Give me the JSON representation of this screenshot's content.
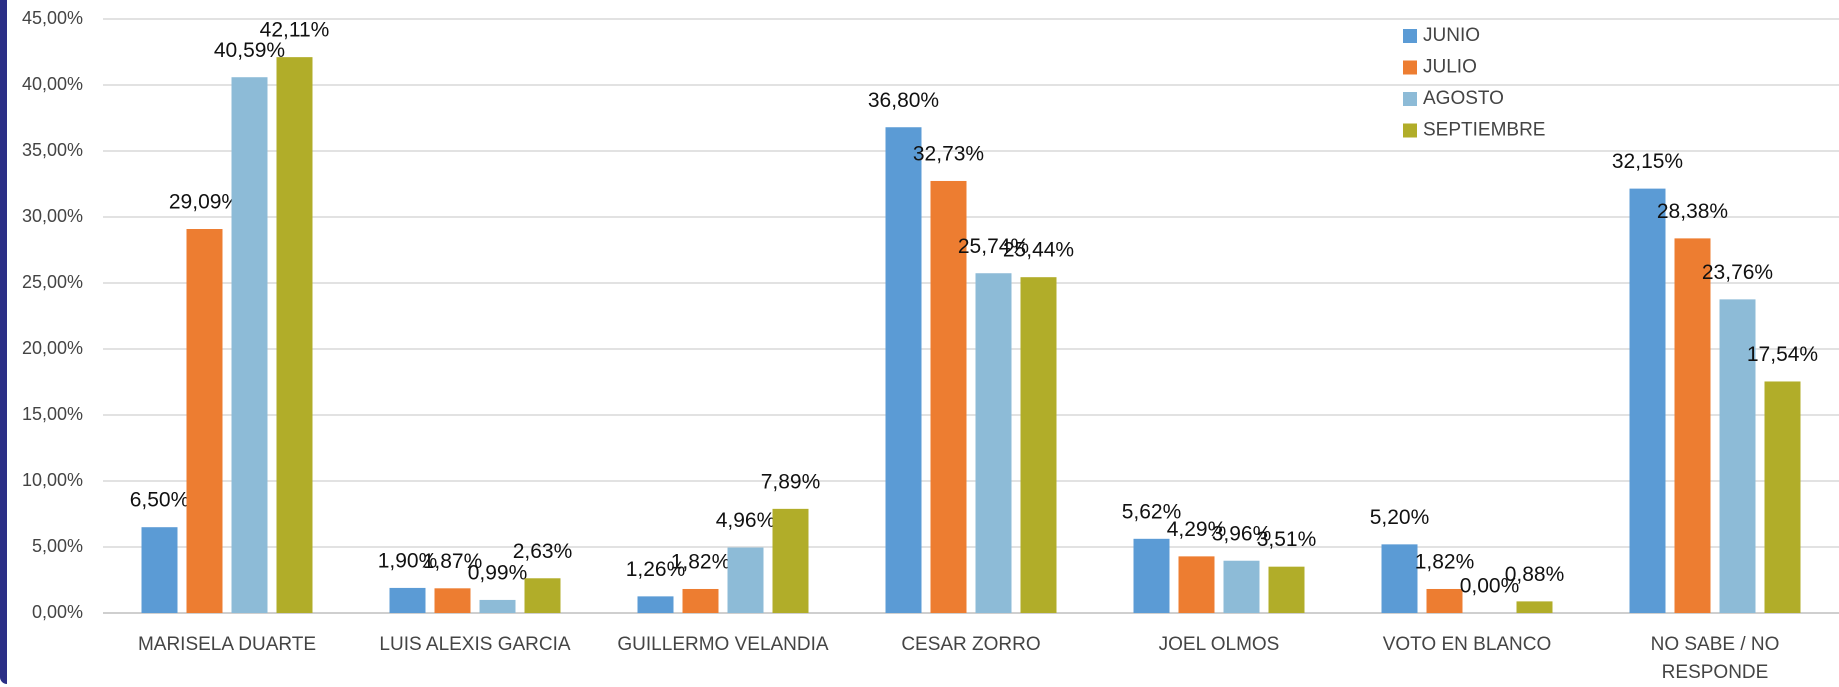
{
  "chart_data": {
    "type": "bar",
    "categories": [
      "MARISELA DUARTE",
      "LUIS ALEXIS GARCIA",
      "GUILLERMO VELANDIA",
      "CESAR ZORRO",
      "JOEL OLMOS",
      "VOTO EN BLANCO",
      "NO SABE / NO RESPONDE"
    ],
    "series": [
      {
        "name": "JUNIO",
        "color": "#5b9bd5",
        "values": [
          6.5,
          1.9,
          1.26,
          36.8,
          5.62,
          5.2,
          32.15
        ],
        "value_labels": [
          "6,50%",
          "1,90%",
          "1,26%",
          "36,80%",
          "5,62%",
          "5,20%",
          "32,15%"
        ]
      },
      {
        "name": "JULIO",
        "color": "#ed7d31",
        "values": [
          29.09,
          1.87,
          1.82,
          32.73,
          4.29,
          1.82,
          28.38
        ],
        "value_labels": [
          "29,09%",
          "1,87%",
          "1,82%",
          "32,73%",
          "4,29%",
          "1,82%",
          "28,38%"
        ]
      },
      {
        "name": "AGOSTO",
        "color": "#8dbbd7",
        "values": [
          40.59,
          0.99,
          4.96,
          25.74,
          3.96,
          0,
          23.76
        ],
        "value_labels": [
          "40,59%",
          "0,99%",
          "4,96%",
          "25,74%",
          "3,96%",
          "0,00%",
          "23,76%"
        ]
      },
      {
        "name": "SEPTIEMBRE",
        "color": "#b1ad29",
        "values": [
          42.11,
          2.63,
          7.89,
          25.44,
          3.51,
          0.88,
          17.54
        ],
        "value_labels": [
          "42,11%",
          "2,63%",
          "7,89%",
          "25,44%",
          "3,51%",
          "0,88%",
          "17,54%"
        ]
      }
    ],
    "ylim": [
      0,
      45
    ],
    "yticks": [
      {
        "value": 0,
        "label": "0,00%"
      },
      {
        "value": 5,
        "label": "5,00%"
      },
      {
        "value": 10,
        "label": "10,00%"
      },
      {
        "value": 15,
        "label": "15,00%"
      },
      {
        "value": 20,
        "label": "20,00%"
      },
      {
        "value": 25,
        "label": "25,00%"
      },
      {
        "value": 30,
        "label": "30,00%"
      },
      {
        "value": 35,
        "label": "35,00%"
      },
      {
        "value": 40,
        "label": "40,00%"
      },
      {
        "value": 45,
        "label": "45,00%"
      }
    ],
    "grid": true,
    "legend": "top-right"
  }
}
